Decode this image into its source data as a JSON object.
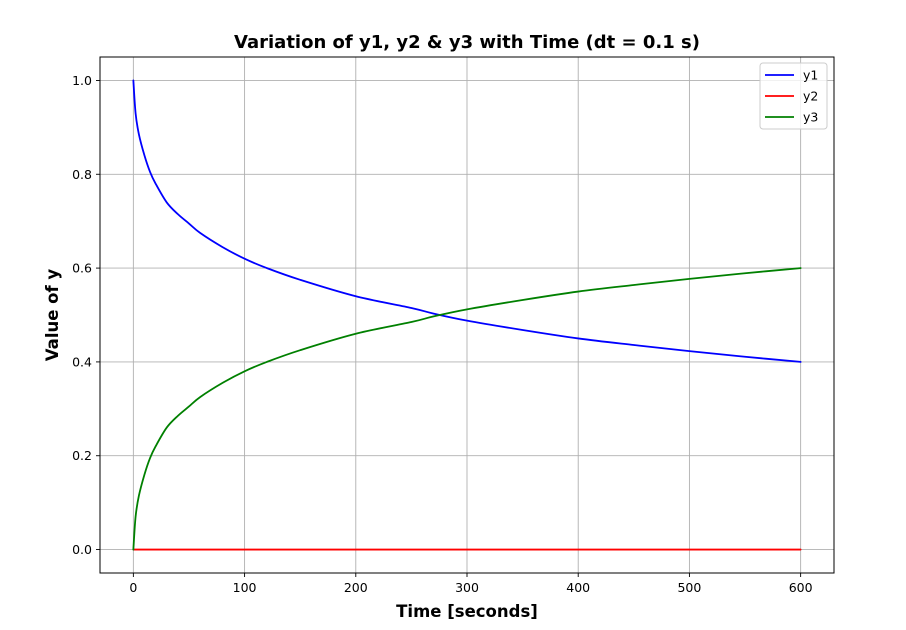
{
  "chart_data": {
    "type": "line",
    "title": "Variation of y1, y2 & y3 with Time (dt = 0.1 s)",
    "xlabel": "Time [seconds]",
    "ylabel": "Value of y",
    "xlim": [
      -30,
      630
    ],
    "ylim": [
      -0.05,
      1.05
    ],
    "xticks": [
      0,
      100,
      200,
      300,
      400,
      500,
      600
    ],
    "yticks": [
      0.0,
      0.2,
      0.4,
      0.6,
      0.8,
      1.0
    ],
    "xtick_labels": [
      "0",
      "100",
      "200",
      "300",
      "400",
      "500",
      "600"
    ],
    "ytick_labels": [
      "0.0",
      "0.2",
      "0.4",
      "0.6",
      "0.8",
      "1.0"
    ],
    "grid": true,
    "legend_position": "top-right",
    "x": [
      0,
      2,
      5,
      10,
      15,
      20,
      30,
      40,
      50,
      60,
      80,
      100,
      120,
      150,
      200,
      250,
      270,
      300,
      350,
      400,
      450,
      500,
      550,
      600
    ],
    "series": [
      {
        "name": "y1",
        "color": "#0000ff",
        "values": [
          1.0,
          0.93,
          0.885,
          0.84,
          0.805,
          0.78,
          0.74,
          0.715,
          0.695,
          0.675,
          0.645,
          0.62,
          0.6,
          0.575,
          0.54,
          0.515,
          0.503,
          0.488,
          0.468,
          0.45,
          0.436,
          0.423,
          0.411,
          0.4
        ]
      },
      {
        "name": "y2",
        "color": "#ff0000",
        "values": [
          0,
          0,
          0,
          0,
          0,
          0,
          0,
          0,
          0,
          0,
          0,
          0,
          0,
          0,
          0,
          0,
          0,
          0,
          0,
          0,
          0,
          0,
          0,
          0
        ]
      },
      {
        "name": "y3",
        "color": "#008000",
        "values": [
          0.0,
          0.07,
          0.115,
          0.16,
          0.195,
          0.22,
          0.26,
          0.285,
          0.305,
          0.325,
          0.355,
          0.38,
          0.4,
          0.425,
          0.46,
          0.485,
          0.497,
          0.512,
          0.532,
          0.55,
          0.564,
          0.577,
          0.589,
          0.6
        ]
      }
    ]
  }
}
